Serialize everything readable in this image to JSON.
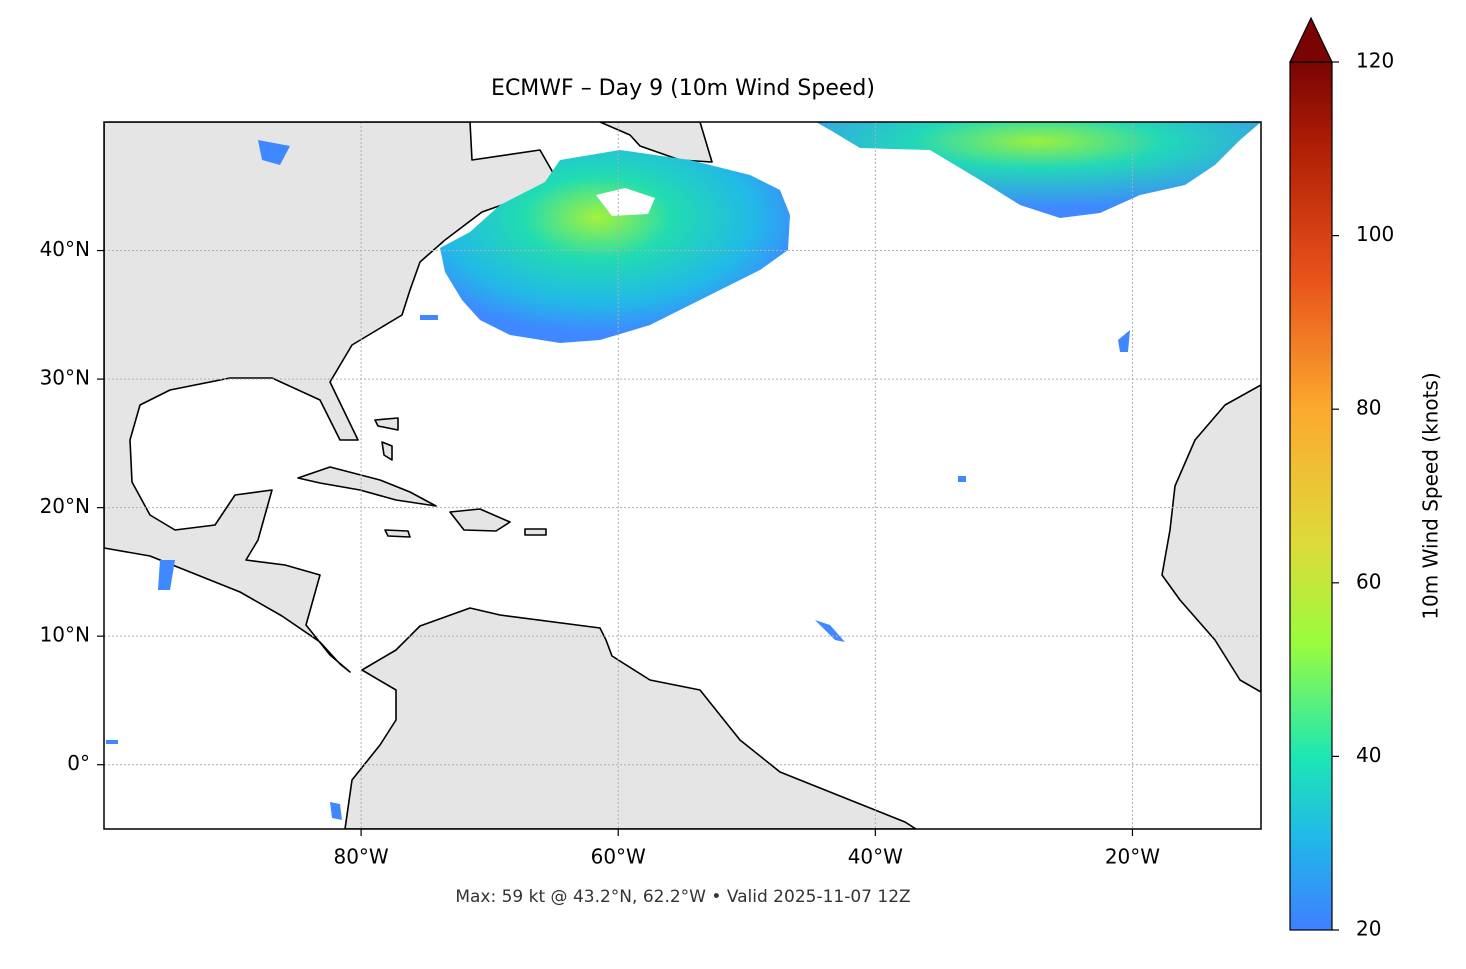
{
  "chart_data": {
    "type": "map",
    "title": "ECMWF – Day 9 (10m Wind Speed)",
    "xlim": [
      -100,
      -10
    ],
    "ylim": [
      -5,
      50
    ],
    "xticks": [
      {
        "value": -80,
        "label": "80°W"
      },
      {
        "value": -60,
        "label": "60°W"
      },
      {
        "value": -40,
        "label": "40°W"
      },
      {
        "value": -20,
        "label": "20°W"
      }
    ],
    "yticks": [
      {
        "value": 0,
        "label": "0°"
      },
      {
        "value": 10,
        "label": "10°N"
      },
      {
        "value": 20,
        "label": "20°N"
      },
      {
        "value": 30,
        "label": "30°N"
      },
      {
        "value": 40,
        "label": "40°N"
      }
    ],
    "grid": true,
    "colorbar": {
      "label": "10m Wind Speed (knots)",
      "lim": [
        20,
        120
      ],
      "ticks": [
        20,
        40,
        60,
        80,
        100,
        120
      ]
    },
    "annotation": "Max: 59 kt @ 43.2°N, 62.2°W • Valid 2025-11-07 12Z"
  }
}
